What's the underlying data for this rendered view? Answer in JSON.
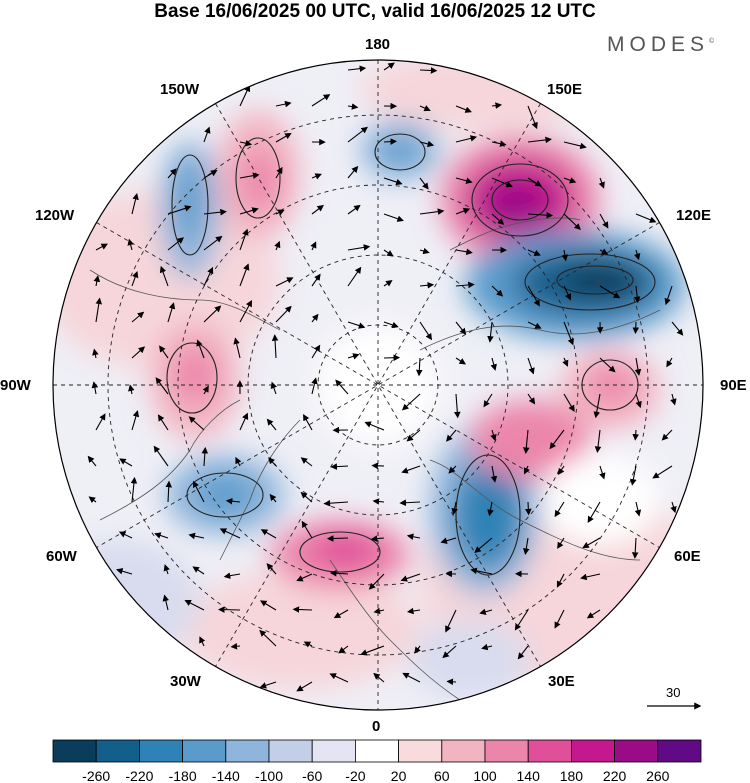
{
  "title": "Base 16/06/2025 00 UTC, valid 16/06/2025 12 UTC",
  "brand": "MODES",
  "brand_mark": "©",
  "longitude_labels": {
    "top": "180",
    "top_left": "150W",
    "top_right": "150E",
    "upper_left": "120W",
    "upper_right": "120E",
    "left": "90W",
    "right": "90E",
    "lower_left": "60W",
    "lower_right": "60E",
    "bottom_left": "30W",
    "bottom_right": "30E",
    "bottom": "0"
  },
  "reference_vector": {
    "label": "30"
  },
  "colorbar": {
    "tick_labels": [
      "-260",
      "-220",
      "-180",
      "-140",
      "-100",
      "-60",
      "-20",
      "20",
      "60",
      "100",
      "140",
      "180",
      "220",
      "260"
    ],
    "colors": [
      "#0a3d5c",
      "#135f8c",
      "#2f82b5",
      "#5a9bcc",
      "#8fb5dc",
      "#c3cee8",
      "#e4e4f2",
      "#ffffff",
      "#f9dadd",
      "#f3b4c2",
      "#ec85aa",
      "#e0509a",
      "#c5188e",
      "#9a0b87",
      "#620a85"
    ]
  },
  "anomaly_centers": [
    {
      "sign": "negative",
      "sector": "150E-120E",
      "level": -260
    },
    {
      "sign": "positive",
      "sector": "150E",
      "level": 220
    },
    {
      "sign": "negative",
      "sector": "30E-60E",
      "level": -180
    },
    {
      "sign": "positive",
      "sector": "60E-90E",
      "level": 140
    },
    {
      "sign": "positive",
      "sector": "90E",
      "level": 100
    },
    {
      "sign": "positive",
      "sector": "0-30W",
      "level": 140
    },
    {
      "sign": "negative",
      "sector": "60W",
      "level": -140
    },
    {
      "sign": "positive",
      "sector": "90W",
      "level": 100
    },
    {
      "sign": "negative",
      "sector": "150W",
      "level": -140
    },
    {
      "sign": "positive",
      "sector": "150W-180",
      "level": 100
    },
    {
      "sign": "negative",
      "sector": "180",
      "level": -140
    },
    {
      "sign": "positive",
      "sector": "120W",
      "level": 60
    }
  ]
}
